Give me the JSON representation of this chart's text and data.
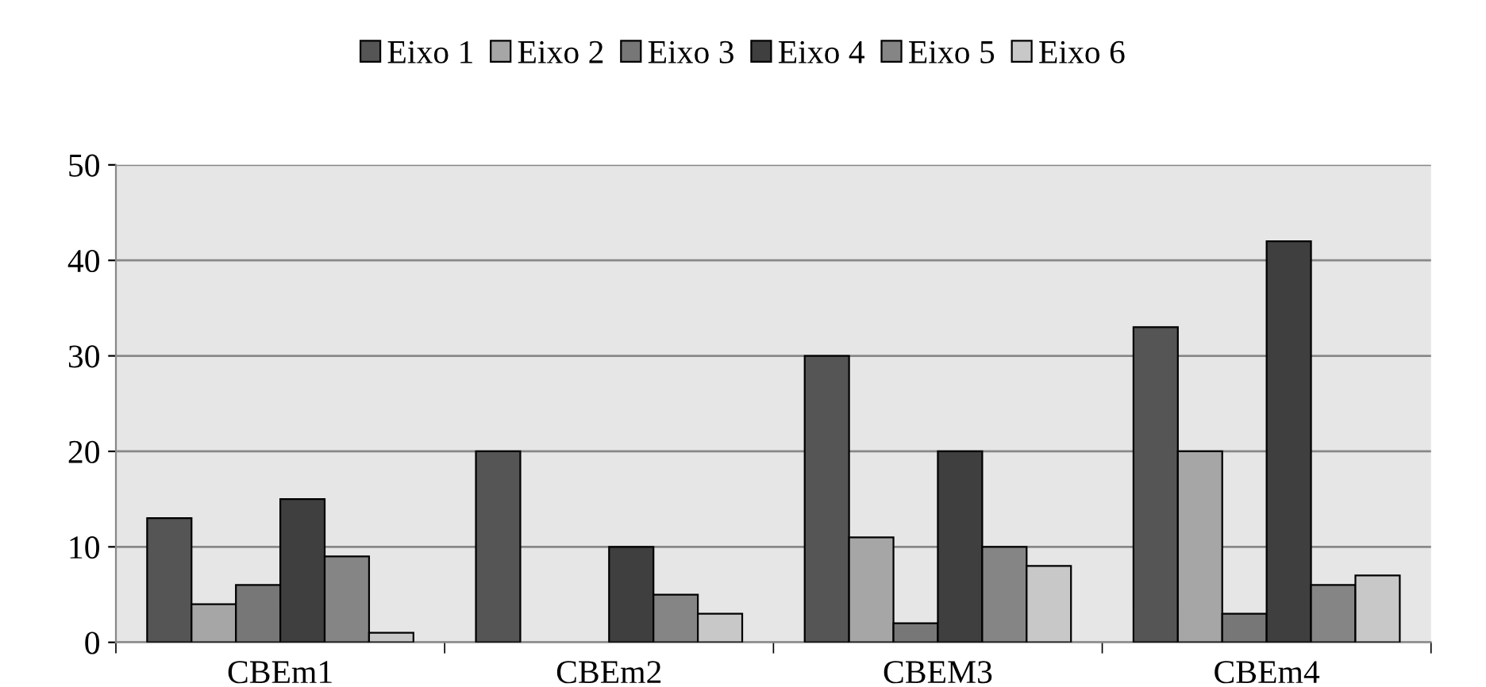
{
  "chart_data": {
    "type": "bar",
    "categories": [
      "CBEm1",
      "CBEm2",
      "CBEM3",
      "CBEm4"
    ],
    "series": [
      {
        "name": "Eixo 1",
        "color": "#555555",
        "values": [
          13,
          20,
          30,
          33
        ]
      },
      {
        "name": "Eixo 2",
        "color": "#a6a6a6",
        "values": [
          4,
          0,
          11,
          20
        ]
      },
      {
        "name": "Eixo 3",
        "color": "#777777",
        "values": [
          6,
          0,
          2,
          3
        ]
      },
      {
        "name": "Eixo 4",
        "color": "#3f3f3f",
        "values": [
          15,
          10,
          20,
          42
        ]
      },
      {
        "name": "Eixo 5",
        "color": "#858585",
        "values": [
          9,
          5,
          10,
          6
        ]
      },
      {
        "name": "Eixo 6",
        "color": "#c8c8c8",
        "values": [
          1,
          3,
          8,
          7
        ]
      }
    ],
    "ylim": [
      0,
      50
    ],
    "yticks": [
      0,
      10,
      20,
      30,
      40,
      50
    ],
    "grid": "y",
    "legend": "top"
  }
}
